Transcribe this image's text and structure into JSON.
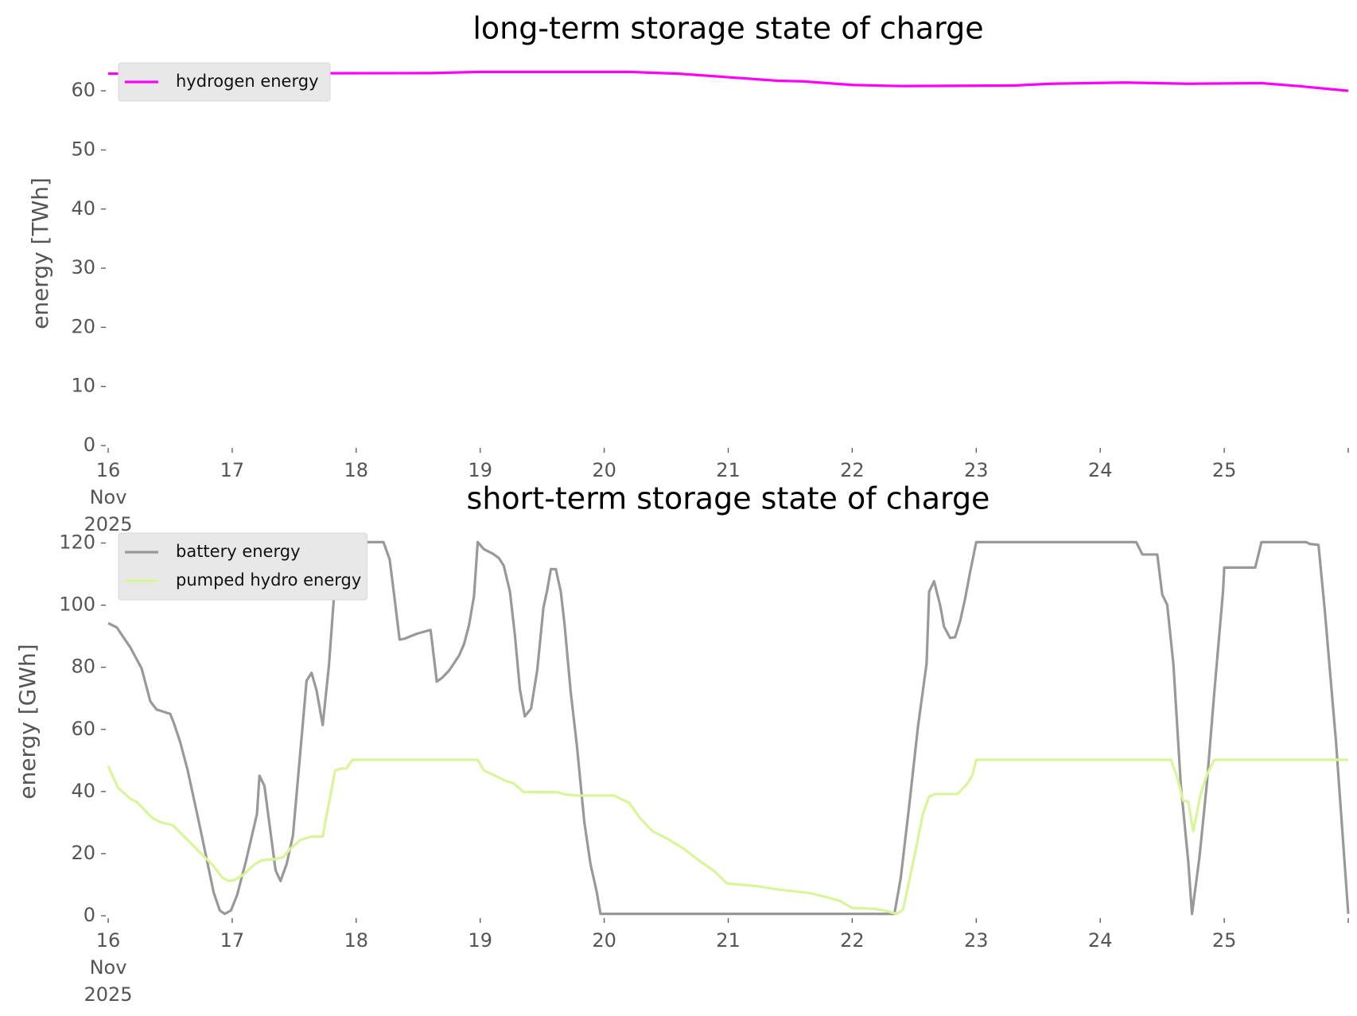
{
  "chart_data": [
    {
      "type": "line",
      "title": "long-term storage state of charge",
      "ylabel": "energy [TWh]",
      "xlim": [
        16,
        26
      ],
      "ylim": [
        0,
        65
      ],
      "xticks": [
        {
          "value": 16,
          "label": "16 Nov 2025"
        },
        17,
        18,
        19,
        20,
        21,
        22,
        23,
        24,
        25,
        {
          "value": 26,
          "label": null
        }
      ],
      "yticks": [
        0,
        10,
        20,
        30,
        40,
        50,
        60
      ],
      "grid": false,
      "legend": "upper left",
      "series": [
        {
          "name": "hydrogen energy",
          "color": "#ff00ff",
          "x": [
            16.0,
            18.6,
            19.0,
            20.2,
            20.6,
            21.0,
            21.4,
            21.6,
            22.0,
            22.4,
            23.3,
            23.6,
            24.2,
            24.7,
            25.3,
            25.6,
            26.0
          ],
          "values": [
            62.9,
            63.0,
            63.2,
            63.2,
            62.9,
            62.3,
            61.7,
            61.6,
            61.0,
            60.8,
            60.9,
            61.2,
            61.4,
            61.2,
            61.3,
            60.8,
            60.0
          ]
        }
      ]
    },
    {
      "type": "line",
      "title": "short-term storage state of charge",
      "ylabel": "energy [GWh]",
      "xlim": [
        16,
        26
      ],
      "ylim": [
        0,
        125
      ],
      "xticks": [
        {
          "value": 16,
          "label": "16 Nov 2025"
        },
        17,
        18,
        19,
        20,
        21,
        22,
        23,
        24,
        25,
        {
          "value": 26,
          "label": null
        }
      ],
      "yticks": [
        0,
        20,
        40,
        60,
        80,
        100,
        120
      ],
      "grid": false,
      "legend": "upper left",
      "series": [
        {
          "name": "battery energy",
          "color": "#999999",
          "x": [
            16.0,
            16.07,
            16.18,
            16.27,
            16.34,
            16.39,
            16.5,
            16.53,
            16.58,
            16.64,
            16.74,
            16.85,
            16.9,
            16.94,
            16.99,
            17.04,
            17.11,
            17.2,
            17.22,
            17.26,
            17.35,
            17.39,
            17.44,
            17.49,
            17.55,
            17.6,
            17.64,
            17.68,
            17.73,
            17.78,
            17.83,
            17.86,
            17.89,
            17.93,
            17.98,
            18.22,
            18.27,
            18.31,
            18.35,
            18.39,
            18.44,
            18.49,
            18.57,
            18.6,
            18.65,
            18.69,
            18.75,
            18.83,
            18.87,
            18.91,
            18.95,
            18.98,
            19.03,
            19.1,
            19.15,
            19.19,
            19.24,
            19.28,
            19.32,
            19.36,
            19.41,
            19.46,
            19.51,
            19.54,
            19.57,
            19.61,
            19.65,
            19.68,
            19.73,
            19.78,
            19.84,
            19.89,
            19.94,
            19.97,
            22.34,
            22.39,
            22.46,
            22.53,
            22.6,
            22.62,
            22.66,
            22.71,
            22.74,
            22.79,
            22.83,
            22.87,
            22.91,
            22.95,
            23.0,
            24.29,
            24.34,
            24.46,
            24.5,
            24.54,
            24.59,
            24.65,
            24.71,
            24.74,
            24.8,
            24.86,
            24.92,
            24.99,
            25.0,
            25.25,
            25.3,
            25.66,
            25.69,
            25.76,
            25.81,
            25.9,
            26.0
          ],
          "values": [
            94.2,
            92.8,
            86.3,
            79.6,
            69,
            66.4,
            65,
            62,
            56,
            47,
            28.6,
            7.6,
            1.7,
            0.6,
            1.7,
            6.7,
            17.4,
            32.8,
            45.1,
            41.8,
            14.6,
            11.2,
            16.8,
            25.8,
            53,
            75.7,
            78.2,
            72.6,
            61.4,
            80.5,
            107.7,
            116.1,
            115.2,
            116.6,
            120.3,
            120.3,
            114.7,
            102,
            88.9,
            89.2,
            90,
            90.8,
            91.7,
            92,
            75.4,
            76.5,
            79,
            83.8,
            87.5,
            93.6,
            102.9,
            120.3,
            118,
            116.6,
            115.2,
            112.7,
            104.3,
            90.3,
            72.9,
            64.2,
            66.7,
            79.1,
            99.2,
            104.8,
            111.6,
            111.6,
            104.3,
            93.9,
            72,
            54.7,
            30,
            16.5,
            7.6,
            0.6,
            0.6,
            11.8,
            35.6,
            60.8,
            81.3,
            104.3,
            107.7,
            99.8,
            93.1,
            89.4,
            89.7,
            94.8,
            102,
            110.5,
            120.3,
            120.3,
            116.3,
            116.3,
            103.4,
            100.1,
            81,
            42,
            17.4,
            0.6,
            18.8,
            42.6,
            72,
            104.3,
            112.1,
            112.1,
            120.3,
            120.3,
            119.7,
            119.4,
            98.7,
            56.6,
            0.6
          ]
        },
        {
          "name": "pumped hydro energy",
          "color": "#d9f59a",
          "x": [
            16.0,
            16.08,
            16.18,
            16.23,
            16.29,
            16.36,
            16.43,
            16.52,
            16.57,
            16.71,
            16.85,
            16.92,
            16.97,
            17.02,
            17.09,
            17.18,
            17.24,
            17.34,
            17.41,
            17.47,
            17.55,
            17.64,
            17.73,
            17.83,
            17.88,
            17.92,
            17.97,
            18.98,
            19.03,
            19.13,
            19.2,
            19.27,
            19.35,
            19.62,
            19.69,
            19.8,
            20.08,
            20.11,
            20.2,
            20.29,
            20.39,
            20.5,
            20.64,
            20.76,
            20.88,
            20.99,
            21.24,
            21.41,
            21.66,
            21.8,
            21.9,
            22.0,
            22.19,
            22.29,
            22.36,
            22.41,
            22.5,
            22.57,
            22.62,
            22.67,
            22.85,
            22.93,
            22.97,
            23.0,
            24.57,
            24.62,
            24.67,
            24.71,
            24.75,
            24.81,
            24.86,
            24.92,
            26.0
          ],
          "values": [
            48.2,
            41.2,
            37.6,
            36.7,
            34.2,
            31.4,
            30,
            29.2,
            27.2,
            21.6,
            16,
            12.3,
            11.2,
            11.5,
            13.2,
            16.5,
            17.9,
            18.2,
            18.8,
            21.6,
            24.4,
            25.5,
            25.5,
            46.8,
            47.4,
            47.4,
            50.2,
            50.2,
            46.8,
            44.9,
            43.5,
            42.6,
            39.8,
            39.8,
            39,
            38.7,
            38.7,
            38.1,
            36.4,
            31.4,
            27.2,
            25,
            21.6,
            17.9,
            14.6,
            10.4,
            9.5,
            8.4,
            7.3,
            5.9,
            4.8,
            2.5,
            2.2,
            1.4,
            0.6,
            2,
            18.8,
            32.8,
            38.4,
            39.2,
            39.2,
            42.6,
            45.4,
            50.2,
            50.2,
            44.6,
            37,
            36.7,
            27.2,
            39.2,
            45.4,
            50.2,
            50.2
          ]
        }
      ]
    }
  ]
}
